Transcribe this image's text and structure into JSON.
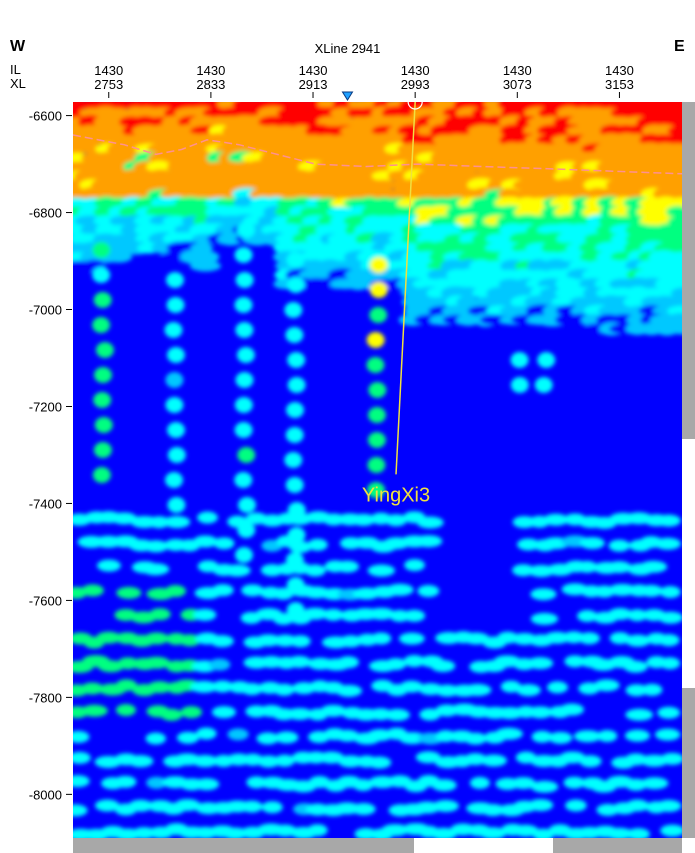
{
  "header": {
    "west": "W",
    "east": "E",
    "title": "XLine 2941",
    "il_label": "IL",
    "xl_label": "XL"
  },
  "chart_data": {
    "type": "heatmap",
    "title": "XLine 2941",
    "x_axis": {
      "il_ticks": [
        "1430",
        "1430",
        "1430",
        "1430",
        "1430",
        "1430"
      ],
      "xl_ticks": [
        "2753",
        "2833",
        "2913",
        "2993",
        "3073",
        "3153"
      ],
      "xl_values": [
        2753,
        2833,
        2913,
        2993,
        3073,
        3153
      ],
      "xl_range": [
        2725,
        3202
      ]
    },
    "y_axis": {
      "ticks": [
        -6600,
        -6800,
        -7000,
        -7200,
        -7400,
        -7600,
        -7800,
        -8000
      ],
      "labels": [
        "-6600",
        "-6800",
        "-7000",
        "-7200",
        "-7400",
        "-7600",
        "-7800",
        "-8000"
      ],
      "range": [
        -6572,
        -8090
      ]
    },
    "colormap": [
      "#0000ff",
      "#00c8ff",
      "#00ffff",
      "#00ff80",
      "#ffff00",
      "#ffa000",
      "#ff0000"
    ],
    "marker_xl": 2940,
    "well": {
      "name": "YingXi3",
      "top": {
        "xl": 2993,
        "z": -6572
      },
      "bottom": {
        "xl": 2978,
        "z": -7340
      },
      "color": "#f0e040"
    },
    "horizon": {
      "color": "#ff9090",
      "points": [
        [
          2725,
          -6640
        ],
        [
          2765,
          -6660
        ],
        [
          2790,
          -6680
        ],
        [
          2810,
          -6670
        ],
        [
          2830,
          -6650
        ],
        [
          2855,
          -6660
        ],
        [
          2885,
          -6680
        ],
        [
          2915,
          -6700
        ],
        [
          2955,
          -6705
        ],
        [
          2995,
          -6700
        ],
        [
          3045,
          -6705
        ],
        [
          3100,
          -6710
        ],
        [
          3150,
          -6715
        ],
        [
          3202,
          -6720
        ]
      ]
    }
  }
}
